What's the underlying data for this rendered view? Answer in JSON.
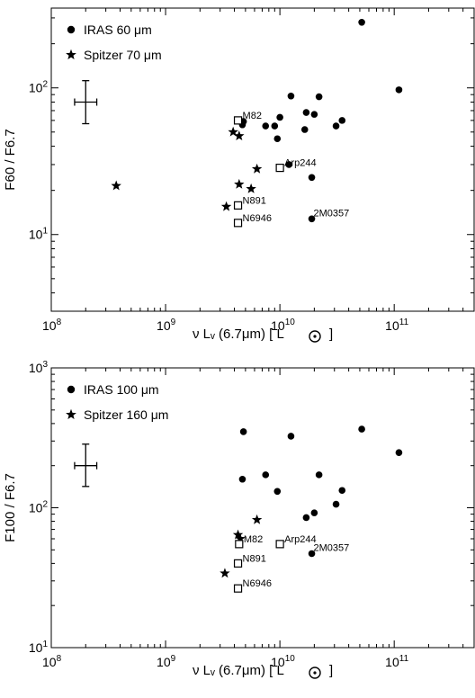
{
  "chart_data": [
    {
      "type": "scatter",
      "xscale": "log",
      "yscale": "log",
      "xlim": [
        100000000.0,
        500000000000.0
      ],
      "ylim": [
        3,
        350
      ],
      "xlabel": "ν Lᵥ (6.7μm)  [ L",
      "ylabel": "F60 / F6.7",
      "xticks": [
        {
          "value": 100000000.0,
          "base": "10",
          "exp": "8"
        },
        {
          "value": 1000000000.0,
          "base": "10",
          "exp": "9"
        },
        {
          "value": 10000000000.0,
          "base": "10",
          "exp": "10"
        },
        {
          "value": 100000000000.0,
          "base": "10",
          "exp": "11"
        }
      ],
      "yticks": [
        {
          "value": 10,
          "base": "10",
          "exp": "1"
        },
        {
          "value": 100,
          "base": "10",
          "exp": "2"
        }
      ],
      "legend": {
        "position": "top-left",
        "entries": [
          {
            "marker": "circle",
            "label": "IRAS 60 μm"
          },
          {
            "marker": "star",
            "label": "Spitzer 70 μm"
          }
        ]
      },
      "errorbar": {
        "x": 200000000.0,
        "y": 80,
        "x_low": 160000000.0,
        "x_high": 250000000.0,
        "y_low": 57,
        "y_high": 112
      },
      "series": [
        {
          "marker": "circle",
          "points": [
            {
              "x": 52000000000.0,
              "y": 280
            },
            {
              "x": 110000000000.0,
              "y": 97
            },
            {
              "x": 12500000000.0,
              "y": 88
            },
            {
              "x": 22000000000.0,
              "y": 87
            },
            {
              "x": 17000000000.0,
              "y": 68
            },
            {
              "x": 20000000000.0,
              "y": 66
            },
            {
              "x": 10000000000.0,
              "y": 63
            },
            {
              "x": 35000000000.0,
              "y": 60
            },
            {
              "x": 4800000000.0,
              "y": 59
            },
            {
              "x": 4700000000.0,
              "y": 56
            },
            {
              "x": 7500000000.0,
              "y": 55
            },
            {
              "x": 9000000000.0,
              "y": 55
            },
            {
              "x": 16500000000.0,
              "y": 52
            },
            {
              "x": 31000000000.0,
              "y": 55
            },
            {
              "x": 9500000000.0,
              "y": 45
            },
            {
              "x": 12000000000.0,
              "y": 30
            },
            {
              "x": 19000000000.0,
              "y": 24.5
            },
            {
              "x": 19000000000.0,
              "y": 12.8
            }
          ]
        },
        {
          "marker": "star",
          "points": [
            {
              "x": 370000000.0,
              "y": 21.5
            },
            {
              "x": 3900000000.0,
              "y": 50
            },
            {
              "x": 4400000000.0,
              "y": 47
            },
            {
              "x": 6300000000.0,
              "y": 28
            },
            {
              "x": 4400000000.0,
              "y": 22
            },
            {
              "x": 5600000000.0,
              "y": 20.5
            },
            {
              "x": 3400000000.0,
              "y": 15.5
            }
          ]
        },
        {
          "marker": "open-square",
          "points": [
            {
              "x": 4300000000.0,
              "y": 60,
              "label": "M82"
            },
            {
              "x": 10000000000.0,
              "y": 28.5,
              "label": "Arp244"
            },
            {
              "x": 4300000000.0,
              "y": 15.8,
              "label": "N891"
            },
            {
              "x": 4300000000.0,
              "y": 12,
              "label": "N6946"
            }
          ]
        }
      ],
      "annotations": [
        {
          "text": "2M0357",
          "x": 19000000000.0,
          "y": 12.8
        }
      ]
    },
    {
      "type": "scatter",
      "xscale": "log",
      "yscale": "log",
      "xlim": [
        100000000.0,
        500000000000.0
      ],
      "ylim": [
        10,
        1000
      ],
      "xlabel": "ν Lᵥ (6.7μm)  [ L",
      "ylabel": "F100 / F6.7",
      "xticks": [
        {
          "value": 100000000.0,
          "base": "10",
          "exp": "8"
        },
        {
          "value": 1000000000.0,
          "base": "10",
          "exp": "9"
        },
        {
          "value": 10000000000.0,
          "base": "10",
          "exp": "10"
        },
        {
          "value": 100000000000.0,
          "base": "10",
          "exp": "11"
        }
      ],
      "yticks": [
        {
          "value": 10,
          "base": "10",
          "exp": "1"
        },
        {
          "value": 100,
          "base": "10",
          "exp": "2"
        },
        {
          "value": 1000,
          "base": "10",
          "exp": "3"
        }
      ],
      "legend": {
        "position": "top-left",
        "entries": [
          {
            "marker": "circle",
            "label": "IRAS 100 μm"
          },
          {
            "marker": "star",
            "label": "Spitzer 160 μm"
          }
        ]
      },
      "errorbar": {
        "x": 200000000.0,
        "y": 200,
        "x_low": 160000000.0,
        "x_high": 250000000.0,
        "y_low": 142,
        "y_high": 285
      },
      "series": [
        {
          "marker": "circle",
          "points": [
            {
              "x": 4800000000.0,
              "y": 350
            },
            {
              "x": 52000000000.0,
              "y": 365
            },
            {
              "x": 12500000000.0,
              "y": 325
            },
            {
              "x": 110000000000.0,
              "y": 248
            },
            {
              "x": 7500000000.0,
              "y": 172
            },
            {
              "x": 22000000000.0,
              "y": 172
            },
            {
              "x": 4700000000.0,
              "y": 160
            },
            {
              "x": 35000000000.0,
              "y": 133
            },
            {
              "x": 9500000000.0,
              "y": 131
            },
            {
              "x": 31000000000.0,
              "y": 106
            },
            {
              "x": 20000000000.0,
              "y": 92
            },
            {
              "x": 17000000000.0,
              "y": 85
            },
            {
              "x": 19000000000.0,
              "y": 47
            }
          ]
        },
        {
          "marker": "star",
          "points": [
            {
              "x": 6300000000.0,
              "y": 82
            },
            {
              "x": 4300000000.0,
              "y": 64
            },
            {
              "x": 4500000000.0,
              "y": 60
            },
            {
              "x": 3300000000.0,
              "y": 34
            }
          ]
        },
        {
          "marker": "open-square",
          "points": [
            {
              "x": 4400000000.0,
              "y": 55,
              "label": "M82"
            },
            {
              "x": 10000000000.0,
              "y": 55,
              "label": "Arp244"
            },
            {
              "x": 4300000000.0,
              "y": 40,
              "label": "N891"
            },
            {
              "x": 4300000000.0,
              "y": 26.5,
              "label": "N6946"
            }
          ]
        }
      ],
      "annotations": [
        {
          "text": "2M0357",
          "x": 19000000000.0,
          "y": 47
        }
      ]
    }
  ]
}
